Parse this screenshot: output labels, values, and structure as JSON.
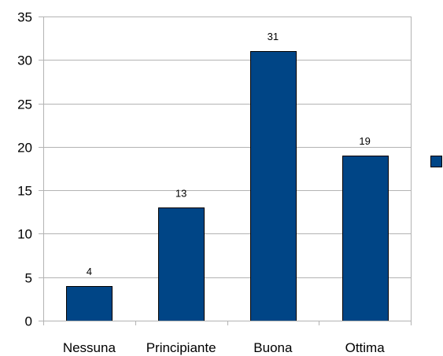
{
  "chart_data": {
    "type": "bar",
    "categories": [
      "Nessuna",
      "Principiante",
      "Buona",
      "Ottima"
    ],
    "values": [
      4,
      13,
      31,
      19
    ],
    "data_labels": [
      "4",
      "13",
      "31",
      "19"
    ],
    "title": "",
    "xlabel": "",
    "ylabel": "",
    "ylim": [
      0,
      35
    ],
    "yticks": [
      0,
      5,
      10,
      15,
      20,
      25,
      30,
      35
    ],
    "ytick_labels": [
      "0",
      "5",
      "10",
      "15",
      "20",
      "25",
      "30",
      "35"
    ],
    "grid": true,
    "legend": "right",
    "bar_color": "#004586",
    "bar_edge_color": "#000000",
    "grid_color": "#b3b3b3"
  }
}
